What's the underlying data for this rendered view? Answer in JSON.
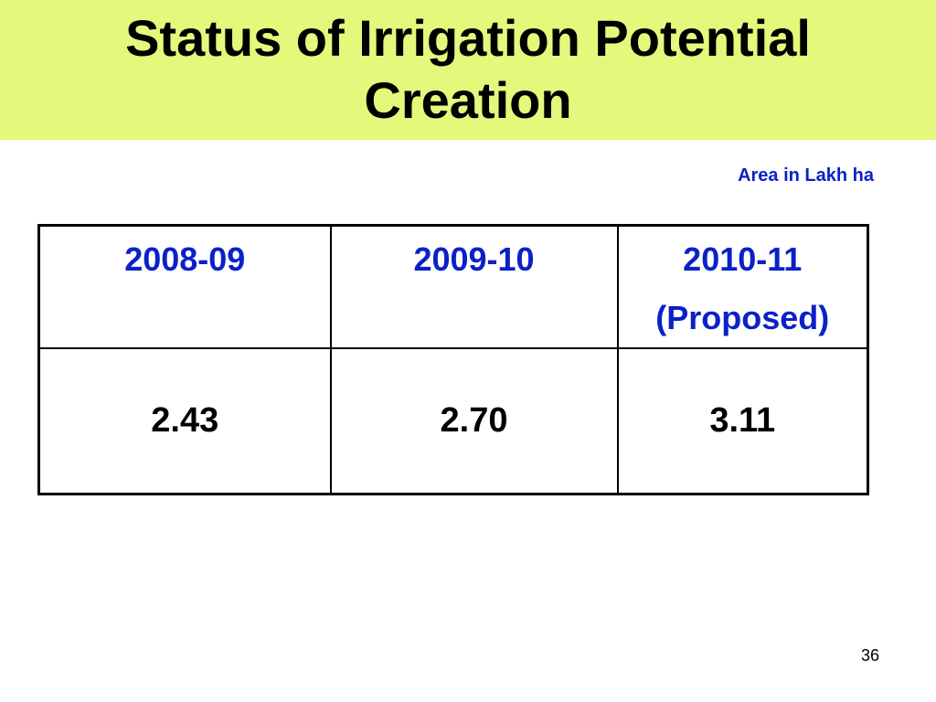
{
  "slide": {
    "title_line1": "Status of Irrigation Potential",
    "title_line2": "Creation",
    "unit_note": "Area in Lakh ha",
    "page_number": "36",
    "colors": {
      "title_band": "#e2f97b",
      "header_text": "#0b21c8",
      "body_text": "#000000"
    }
  },
  "table": {
    "headers": [
      {
        "line1": "2008-09",
        "line2": ""
      },
      {
        "line1": "2009-10",
        "line2": ""
      },
      {
        "line1": "2010-11",
        "line2": "(Proposed)"
      }
    ],
    "values": [
      "2.43",
      "2.70",
      "3.11"
    ]
  }
}
